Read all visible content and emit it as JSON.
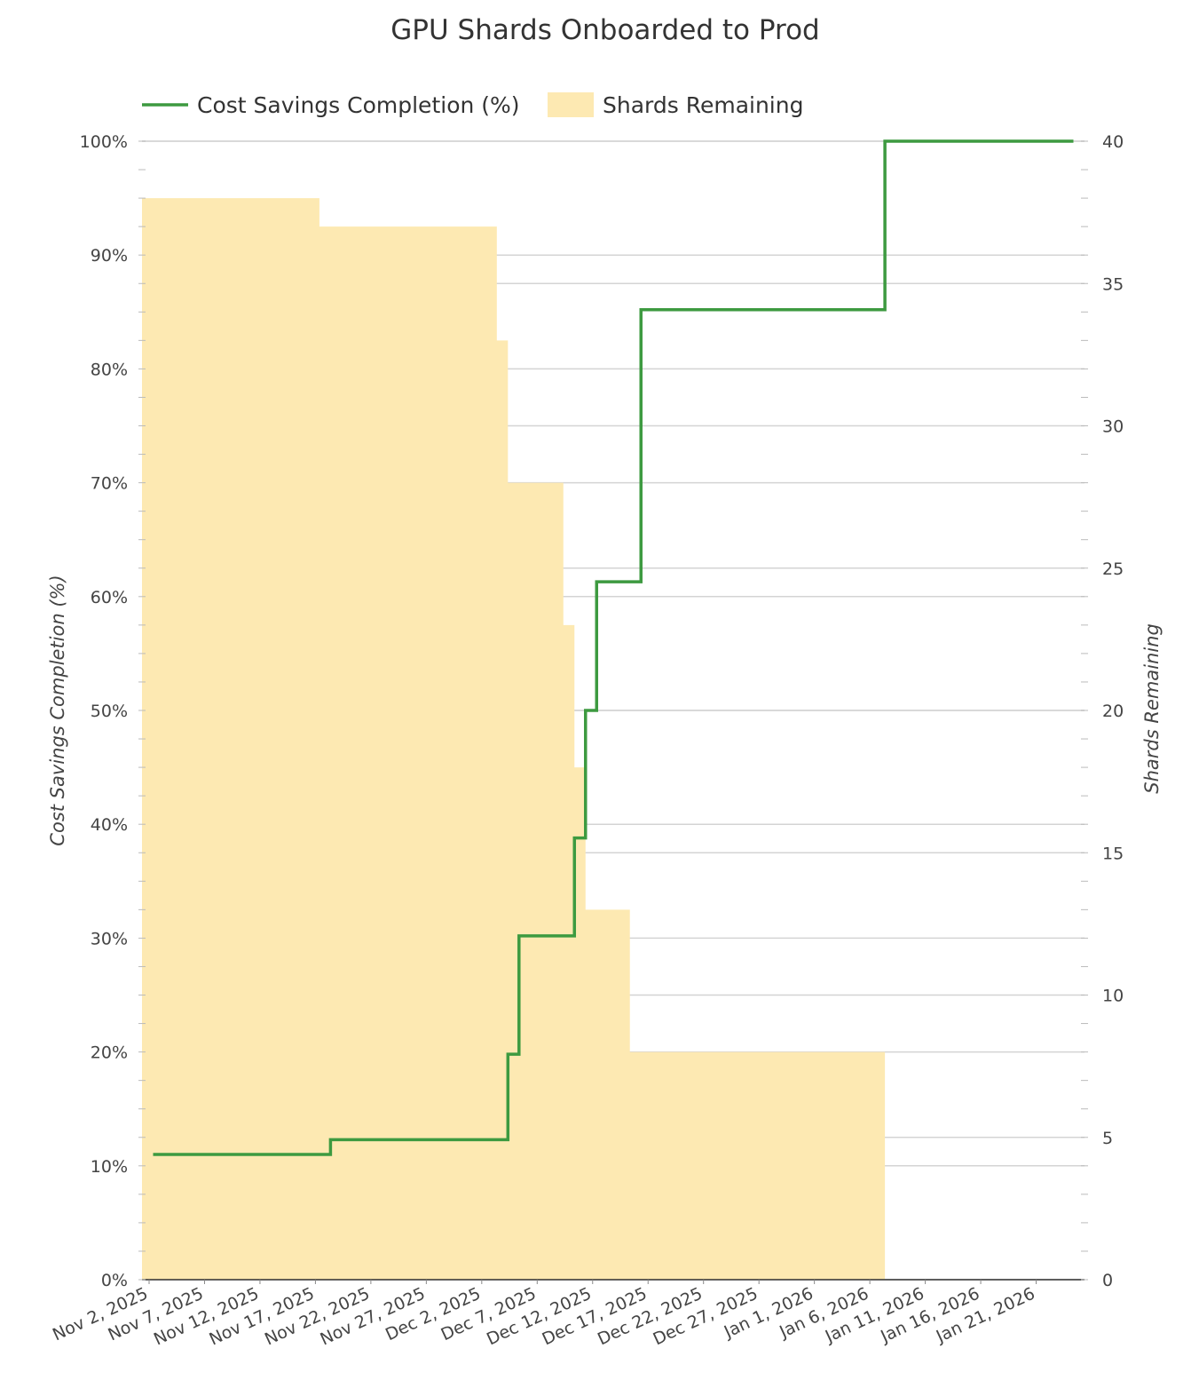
{
  "chart_data": {
    "type": "line",
    "title": "GPU Shards Onboarded to Prod",
    "x_tick_labels": [
      "Nov 2, 2025",
      "Nov 7, 2025",
      "Nov 12, 2025",
      "Nov 17, 2025",
      "Nov 22, 2025",
      "Nov 27, 2025",
      "Dec 2, 2025",
      "Dec 7, 2025",
      "Dec 12, 2025",
      "Dec 17, 2025",
      "Dec 22, 2025",
      "Dec 27, 2025",
      "Jan 1, 2026",
      "Jan 6, 2026",
      "Jan 11, 2026",
      "Jan 16, 2026",
      "Jan 21, 2026"
    ],
    "x_range": [
      "2025-11-02",
      "2026-01-26"
    ],
    "y_left": {
      "label": "Cost Savings Completion (%)",
      "range": [
        0,
        100
      ],
      "ticks": [
        "0%",
        "10%",
        "20%",
        "30%",
        "40%",
        "50%",
        "60%",
        "70%",
        "80%",
        "90%",
        "100%"
      ]
    },
    "y_right": {
      "label": "Shards Remaining",
      "range": [
        0,
        40
      ],
      "ticks": [
        "0",
        "5",
        "10",
        "15",
        "20",
        "25",
        "30",
        "35",
        "40"
      ]
    },
    "legend": {
      "position": "top-left",
      "grid": true
    },
    "series": [
      {
        "name": "Cost Savings Completion (%)",
        "type": "step-line",
        "axis": "left",
        "color": "#3d9a40",
        "points": [
          [
            "2025-11-03",
            11.0
          ],
          [
            "2025-11-19",
            12.3
          ],
          [
            "2025-12-05",
            19.8
          ],
          [
            "2025-12-06",
            30.2
          ],
          [
            "2025-12-11",
            38.8
          ],
          [
            "2025-12-12",
            50.0
          ],
          [
            "2025-12-13",
            61.3
          ],
          [
            "2025-12-17",
            85.2
          ],
          [
            "2026-01-08",
            100.0
          ],
          [
            "2026-01-25",
            100.0
          ]
        ]
      },
      {
        "name": "Shards Remaining",
        "type": "step-area",
        "axis": "right",
        "color": "#fde9b2",
        "points": [
          [
            "2025-11-02",
            38
          ],
          [
            "2025-11-18",
            37
          ],
          [
            "2025-12-04",
            33
          ],
          [
            "2025-12-05",
            28
          ],
          [
            "2025-12-10",
            23
          ],
          [
            "2025-12-11",
            18
          ],
          [
            "2025-12-12",
            13
          ],
          [
            "2025-12-16",
            8
          ],
          [
            "2026-01-08",
            0
          ]
        ]
      }
    ]
  }
}
